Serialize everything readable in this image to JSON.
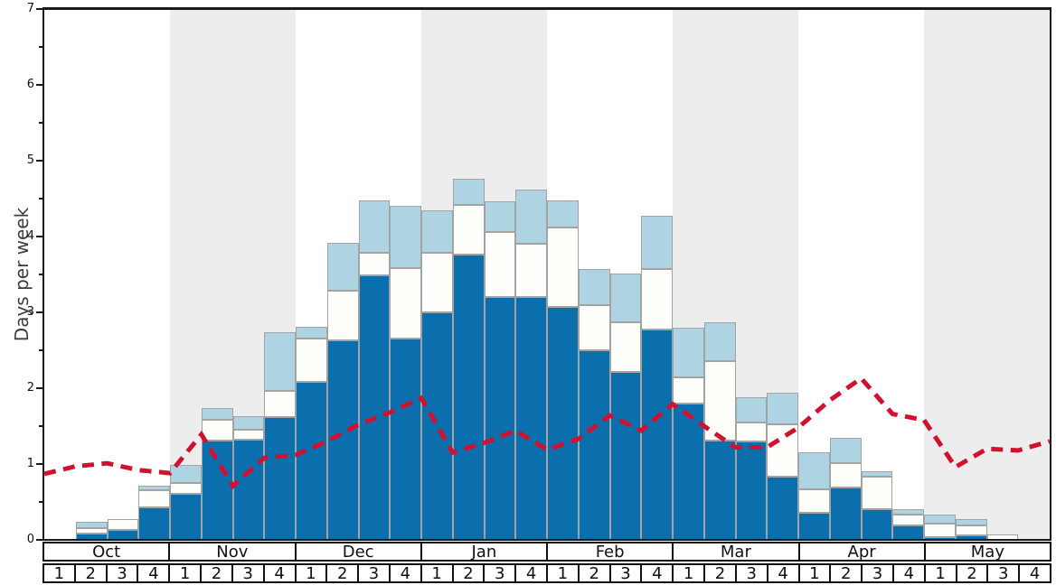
{
  "chart_data": {
    "type": "bar",
    "title": "",
    "ylabel": "Days per week",
    "ylim": [
      0,
      7
    ],
    "ytick_labels": [
      "0",
      "1",
      "2",
      "3",
      "4",
      "5",
      "6",
      "7"
    ],
    "grid": "off",
    "legend": "none",
    "months": [
      "Oct",
      "Nov",
      "Dec",
      "Jan",
      "Feb",
      "Mar",
      "Apr",
      "May"
    ],
    "week_labels_per_month": [
      "1",
      "2",
      "3",
      "4"
    ],
    "categories": [
      "Oct w1",
      "Oct w2",
      "Oct w3",
      "Oct w4",
      "Nov w1",
      "Nov w2",
      "Nov w3",
      "Nov w4",
      "Dec w1",
      "Dec w2",
      "Dec w3",
      "Dec w4",
      "Jan w1",
      "Jan w2",
      "Jan w3",
      "Jan w4",
      "Feb w1",
      "Feb w2",
      "Feb w3",
      "Feb w4",
      "Mar w1",
      "Mar w2",
      "Mar w3",
      "Mar w4",
      "Apr w1",
      "Apr w2",
      "Apr w3",
      "Apr w4",
      "May w1",
      "May w2",
      "May w3",
      "May w4"
    ],
    "series": [
      {
        "name": "dark-blue-segment-top",
        "color": "#0b6fad",
        "values": [
          0,
          0.08,
          0.13,
          0.43,
          0.61,
          1.31,
          1.32,
          1.62,
          2.08,
          2.63,
          3.49,
          2.65,
          3.0,
          3.76,
          3.2,
          3.2,
          3.07,
          2.5,
          2.22,
          2.77,
          1.8,
          1.31,
          1.3,
          0.83,
          0.36,
          0.69,
          0.41,
          0.19,
          0.03,
          0.06,
          0.0,
          0
        ]
      },
      {
        "name": "white-segment-top",
        "color": "#fefefa",
        "values": [
          0,
          0.16,
          0.27,
          0.65,
          0.75,
          1.58,
          1.45,
          1.96,
          2.65,
          3.29,
          3.79,
          3.58,
          3.79,
          4.42,
          4.06,
          3.9,
          4.12,
          3.1,
          2.87,
          3.57,
          2.14,
          2.36,
          1.55,
          1.52,
          0.67,
          1.01,
          0.83,
          0.33,
          0.22,
          0.19,
          0.07,
          0
        ]
      },
      {
        "name": "light-blue-segment-top",
        "color": "#aed3e2",
        "values": [
          0,
          0.24,
          0.27,
          0.71,
          0.99,
          1.74,
          1.63,
          2.74,
          2.81,
          3.92,
          4.48,
          4.4,
          4.35,
          4.76,
          4.46,
          4.62,
          4.48,
          3.57,
          3.51,
          4.27,
          2.8,
          2.87,
          1.88,
          1.94,
          1.15,
          1.34,
          0.9,
          0.4,
          0.33,
          0.27,
          0.07,
          0
        ]
      }
    ],
    "dashed_line": {
      "name": "red-dashed-reference-line",
      "color": "#d2102f",
      "style": "dashed",
      "x_positions": "week boundaries (33 points, Oct start through May end)",
      "values": [
        0.87,
        0.97,
        1.01,
        0.92,
        0.88,
        1.39,
        0.71,
        1.08,
        1.12,
        1.3,
        1.52,
        1.68,
        1.87,
        1.15,
        1.28,
        1.44,
        1.19,
        1.33,
        1.64,
        1.44,
        1.79,
        1.5,
        1.22,
        1.22,
        1.48,
        1.84,
        2.13,
        1.66,
        1.58,
        0.96,
        1.2,
        1.18,
        1.3
      ]
    },
    "month_band_colors": {
      "odd": "#ededed",
      "even": "#ffffff"
    },
    "bar_border_color": "#a3a3a3",
    "axis_color": "#1a1a1a"
  }
}
